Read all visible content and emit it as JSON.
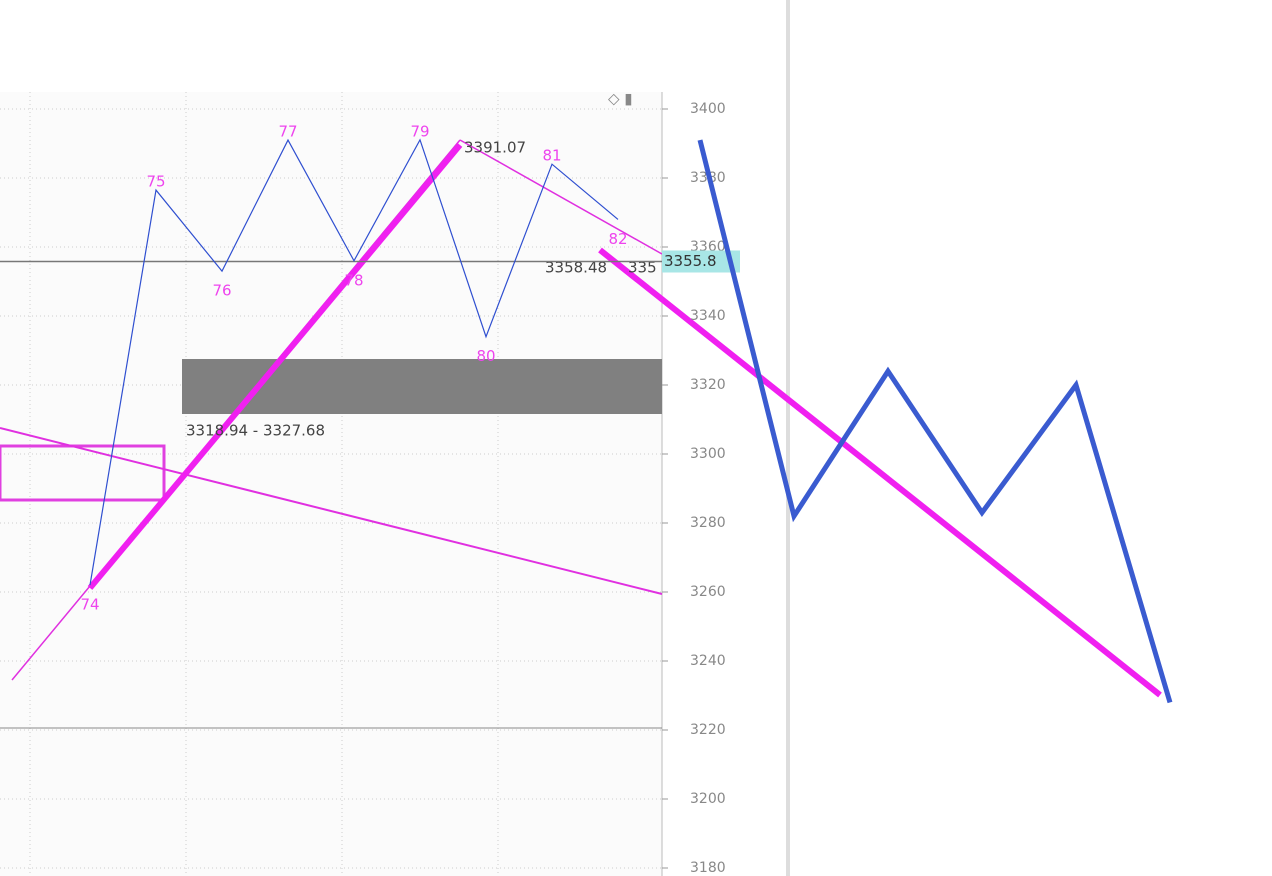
{
  "chart_data": {
    "type": "line",
    "ylim": [
      3180,
      3400
    ],
    "yticks": [
      3180,
      3200,
      3220,
      3240,
      3260,
      3280,
      3300,
      3320,
      3340,
      3360,
      3380,
      3400
    ],
    "grid": true,
    "categories": [
      "74",
      "75",
      "76",
      "77",
      "78",
      "79",
      "80",
      "81",
      "82"
    ],
    "series": [
      {
        "color": "#2f4fd0",
        "values": [
          3262,
          3376.5,
          3353,
          3391,
          3356,
          3391.07,
          3334,
          3384,
          3368
        ]
      }
    ],
    "projection": {
      "color": "#3a5bd0",
      "values": [
        3391,
        3282,
        3324,
        3283,
        3320,
        3228
      ]
    },
    "price_line": {
      "value": 3355.8
    },
    "annotations": [
      "3391.07",
      "3358.48",
      "335",
      "3318.94 - 3327.68"
    ]
  }
}
